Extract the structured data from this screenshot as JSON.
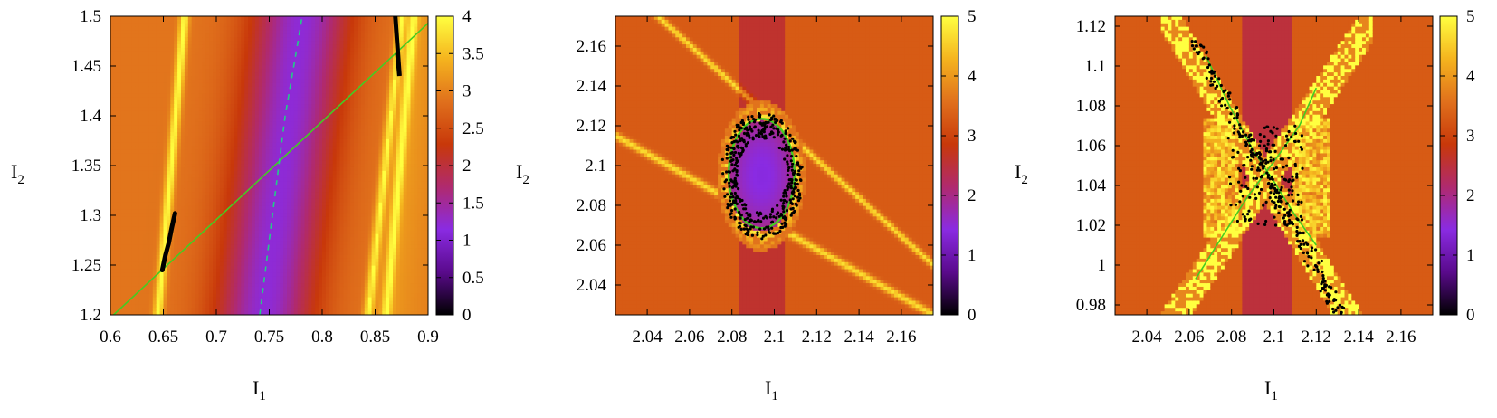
{
  "palette": {
    "stops": [
      "#000000",
      "#5a0a8c",
      "#8a2be2",
      "#b02a6e",
      "#c8380a",
      "#e0701c",
      "#f5b41e",
      "#ffff40"
    ],
    "green_curve": "#44cc22",
    "dashed_curve": "#22cc88",
    "points": "#000000"
  },
  "chart_data": [
    {
      "type": "heatmap",
      "title": "",
      "xlabel": "I",
      "xlabel_sub": "1",
      "ylabel": "I",
      "ylabel_sub": "2",
      "xlim": [
        0.6,
        0.9
      ],
      "ylim": [
        1.2,
        1.5
      ],
      "xticks": [
        0.6,
        0.65,
        0.7,
        0.75,
        0.8,
        0.85,
        0.9
      ],
      "xtick_labels": [
        "0.6",
        "0.65",
        "0.7",
        "0.75",
        "0.8",
        "0.85",
        "0.9"
      ],
      "yticks": [
        1.2,
        1.25,
        1.3,
        1.35,
        1.4,
        1.45,
        1.5
      ],
      "ytick_labels": [
        "1.2",
        "1.25",
        "1.3",
        "1.35",
        "1.4",
        "1.45",
        "1.5"
      ],
      "colorbar": {
        "range": [
          0,
          4
        ],
        "ticks": [
          0,
          0.5,
          1,
          1.5,
          2,
          2.5,
          3,
          3.5,
          4
        ],
        "tick_labels": [
          "0",
          "0.5",
          "1",
          "1.5",
          "2",
          "2.5",
          "3",
          "3.5",
          "4"
        ]
      },
      "background_value": 2.9,
      "features": {
        "low_band": {
          "center_x_at_bottom": 0.745,
          "slope": 0.12,
          "min_value": 1.2,
          "half_width": 0.06
        },
        "resonance_lines": [
          {
            "x": [
              0.645,
              0.67
            ],
            "y": [
              1.2,
              1.5
            ]
          },
          {
            "x": [
              0.843,
              0.875
            ],
            "y": [
              1.2,
              1.5
            ]
          },
          {
            "x": [
              0.86,
              0.886
            ],
            "y": [
              1.2,
              1.5
            ]
          }
        ]
      },
      "series": [
        {
          "kind": "line",
          "x": [
            0.603,
            0.9
          ],
          "y": [
            1.2,
            1.493
          ]
        },
        {
          "kind": "dashed",
          "x": [
            0.741,
            0.753,
            0.765,
            0.778,
            0.781
          ],
          "y": [
            1.2,
            1.3,
            1.4,
            1.48,
            1.5
          ]
        },
        {
          "kind": "points",
          "x": [
            0.649,
            0.652,
            0.655,
            0.658,
            0.661
          ],
          "y": [
            1.245,
            1.26,
            1.272,
            1.288,
            1.302
          ]
        },
        {
          "kind": "points",
          "x": [
            0.869,
            0.87,
            0.871,
            0.872,
            0.873,
            0.871
          ],
          "y": [
            1.5,
            1.485,
            1.47,
            1.455,
            1.44,
            1.462
          ]
        }
      ]
    },
    {
      "type": "heatmap",
      "title": "",
      "xlabel": "I",
      "xlabel_sub": "1",
      "ylabel": "I",
      "ylabel_sub": "2",
      "xlim": [
        2.025,
        2.175
      ],
      "ylim": [
        2.025,
        2.175
      ],
      "xticks": [
        2.04,
        2.06,
        2.08,
        2.1,
        2.12,
        2.14,
        2.16
      ],
      "xtick_labels": [
        "2.04",
        "2.06",
        "2.08",
        "2.1",
        "2.12",
        "2.14",
        "2.16"
      ],
      "yticks": [
        2.04,
        2.06,
        2.08,
        2.1,
        2.12,
        2.14,
        2.16
      ],
      "ytick_labels": [
        "2.04",
        "2.06",
        "2.08",
        "2.1",
        "2.12",
        "2.14",
        "2.16"
      ],
      "colorbar": {
        "range": [
          0,
          5
        ],
        "ticks": [
          0,
          1,
          2,
          3,
          4,
          5
        ],
        "tick_labels": [
          "0",
          "1",
          "2",
          "3",
          "4",
          "5"
        ]
      },
      "background_value": 3.3,
      "features": {
        "ellipse": {
          "cx": 2.094,
          "cy": 2.095,
          "rx": 0.0155,
          "ry": 0.028
        },
        "vertical_band": {
          "x": [
            2.083,
            2.105
          ],
          "value": 2.3
        },
        "diagonals": [
          {
            "x": [
              2.025,
              2.175
            ],
            "y": [
              2.115,
              2.025
            ]
          },
          {
            "x": [
              2.045,
              2.175
            ],
            "y": [
              2.175,
              2.05
            ]
          }
        ]
      },
      "series": [
        {
          "kind": "ellipse",
          "cx": 2.094,
          "cy": 2.096,
          "rx": 0.0155,
          "ry": 0.0275
        },
        {
          "kind": "points",
          "distribution": "ring",
          "cx": 2.094,
          "cy": 2.095,
          "rx": 0.016,
          "ry": 0.026,
          "count": 420
        }
      ]
    },
    {
      "type": "heatmap",
      "title": "",
      "xlabel": "I",
      "xlabel_sub": "1",
      "ylabel": "I",
      "ylabel_sub": "2",
      "xlim": [
        2.025,
        2.175
      ],
      "ylim": [
        0.975,
        1.125
      ],
      "xticks": [
        2.04,
        2.06,
        2.08,
        2.1,
        2.12,
        2.14,
        2.16
      ],
      "xtick_labels": [
        "2.04",
        "2.06",
        "2.08",
        "2.1",
        "2.12",
        "2.14",
        "2.16"
      ],
      "yticks": [
        0.98,
        1,
        1.02,
        1.04,
        1.06,
        1.08,
        1.1,
        1.12
      ],
      "ytick_labels": [
        "0.98",
        "1",
        "1.02",
        "1.04",
        "1.06",
        "1.08",
        "1.1",
        "1.12"
      ],
      "colorbar": {
        "range": [
          0,
          5
        ],
        "ticks": [
          0,
          1,
          2,
          3,
          4,
          5
        ],
        "tick_labels": [
          "0",
          "1",
          "2",
          "3",
          "4",
          "5"
        ]
      },
      "background_value": 3.3,
      "features": {
        "x_point": {
          "x": 2.096,
          "y": 1.043
        },
        "vertical_band": {
          "x": [
            2.085,
            2.108
          ],
          "value": 2.3
        }
      },
      "series": [
        {
          "kind": "line",
          "x": [
            2.063,
            2.076,
            2.088,
            2.1,
            2.112,
            2.12
          ],
          "y": [
            0.993,
            1.015,
            1.035,
            1.052,
            1.07,
            1.089
          ]
        },
        {
          "kind": "line",
          "x": [
            2.068,
            2.079,
            2.09,
            2.1,
            2.11,
            2.12
          ],
          "y": [
            1.105,
            1.08,
            1.058,
            1.042,
            1.025,
            1.01
          ]
        },
        {
          "kind": "points",
          "distribution": "x-cross",
          "x": [
            2.062,
            2.132
          ],
          "y": [
            1.113,
            0.975
          ],
          "count": 380
        }
      ]
    }
  ]
}
